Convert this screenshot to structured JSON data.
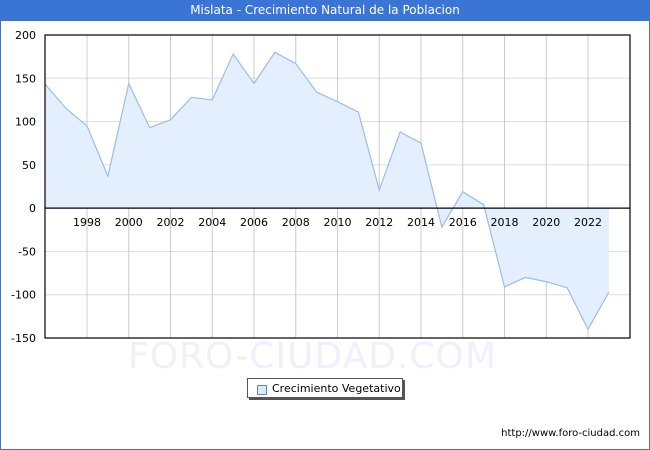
{
  "title": "Mislata - Crecimiento Natural de la Poblacion",
  "legend": {
    "label": "Crecimiento Vegetativo",
    "swatch_icon": "square-swatch-icon"
  },
  "source_url": "http://www.foro-ciudad.com",
  "watermark": {
    "part1": "FORO-",
    "part2": "CIUDAD.COM"
  },
  "colors": {
    "title_bar": "#3a75d6",
    "line": "#9bbde8",
    "fill": "#e3effc",
    "grid": "#cccccc",
    "axis": "#000000"
  },
  "chart_data": {
    "type": "area",
    "title": "Mislata - Crecimiento Natural de la Poblacion",
    "xlabel": "",
    "ylabel": "",
    "x": [
      1996,
      1997,
      1998,
      1999,
      2000,
      2001,
      2002,
      2003,
      2004,
      2005,
      2006,
      2007,
      2008,
      2009,
      2010,
      2011,
      2012,
      2013,
      2014,
      2015,
      2016,
      2017,
      2018,
      2019,
      2020,
      2021,
      2022,
      2023
    ],
    "series": [
      {
        "name": "Crecimiento Vegetativo",
        "values": [
          143,
          115,
          95,
          37,
          144,
          93,
          102,
          128,
          125,
          178,
          144,
          180,
          167,
          134,
          123,
          111,
          21,
          88,
          75,
          -22,
          19,
          4,
          -91,
          -80,
          -85,
          -92,
          -140,
          -97
        ]
      }
    ],
    "x_ticks": [
      "1998",
      "2000",
      "2002",
      "2004",
      "2006",
      "2008",
      "2010",
      "2012",
      "2014",
      "2016",
      "2018",
      "2020",
      "2022"
    ],
    "y_ticks": [
      "200",
      "150",
      "100",
      "50",
      "0",
      "-50",
      "-100",
      "-150"
    ],
    "ylim": [
      -150,
      200
    ],
    "xlim": [
      1996,
      2023
    ],
    "grid": true,
    "legend_position": "bottom-center"
  }
}
